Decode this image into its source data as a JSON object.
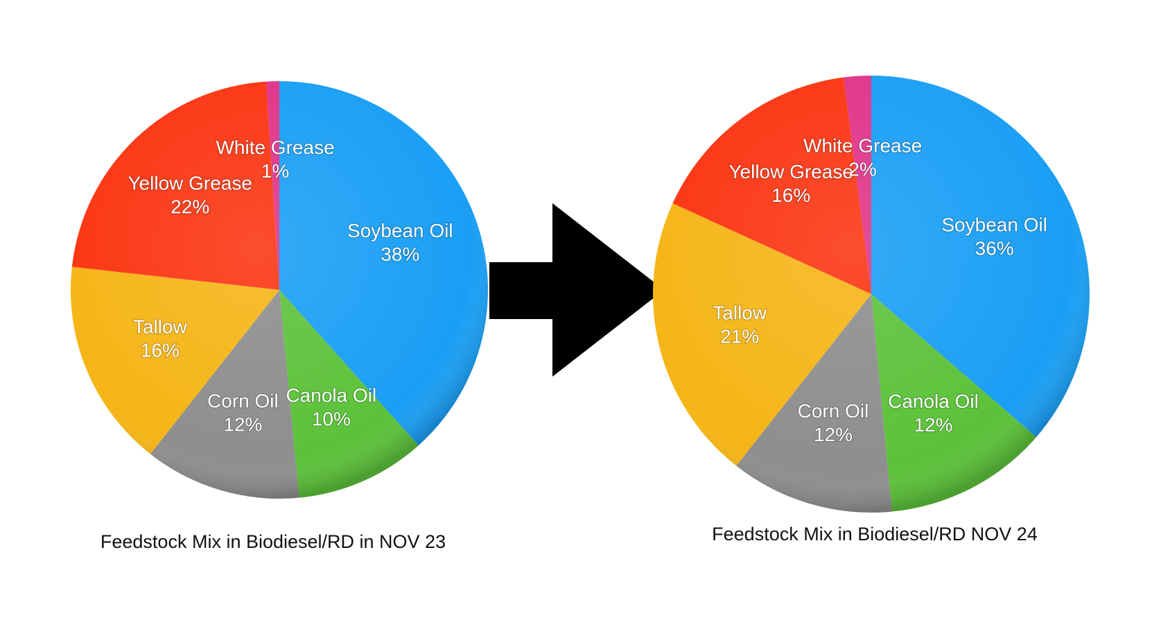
{
  "chart_data": [
    {
      "type": "pie",
      "title": "Feedstock Mix in Biodiesel/RD in NOV 23",
      "categories": [
        "Soybean Oil",
        "Canola Oil",
        "Corn Oil",
        "Tallow",
        "Yellow Grease",
        "White Grease"
      ],
      "values": [
        38,
        10,
        12,
        16,
        22,
        1
      ],
      "value_labels": [
        "38%",
        "10%",
        "12%",
        "16%",
        "22%",
        "1%"
      ],
      "colors": [
        "#1a9ff5",
        "#5cc23a",
        "#8e8e8e",
        "#f5b516",
        "#fb3512",
        "#e0348a"
      ]
    },
    {
      "type": "pie",
      "title": "Feedstock Mix in Biodiesel/RD NOV 24",
      "categories": [
        "Soybean Oil",
        "Canola Oil",
        "Corn Oil",
        "Tallow",
        "Yellow Grease",
        "White Grease"
      ],
      "values": [
        36,
        12,
        12,
        21,
        16,
        2
      ],
      "value_labels": [
        "36%",
        "12%",
        "12%",
        "21%",
        "16%",
        "2%"
      ],
      "colors": [
        "#1a9ff5",
        "#5cc23a",
        "#8e8e8e",
        "#f5b516",
        "#fb3512",
        "#e0348a"
      ]
    }
  ]
}
